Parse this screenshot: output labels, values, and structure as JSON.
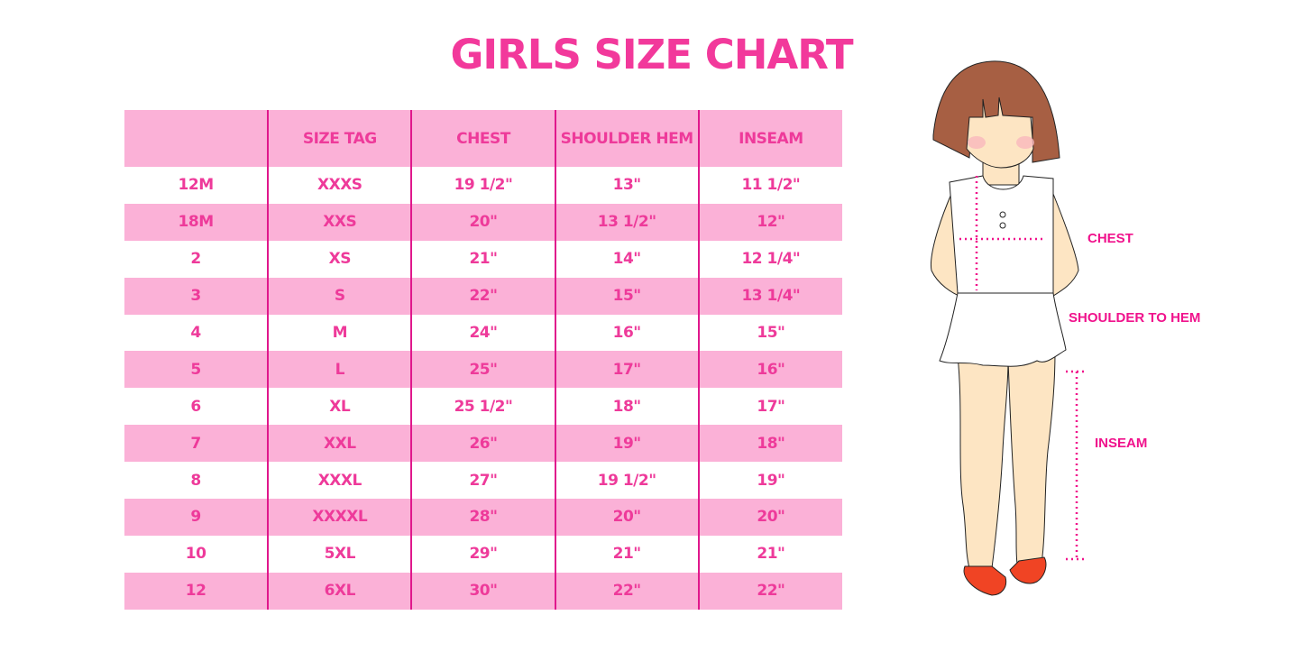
{
  "title": "GIRLS SIZE CHART",
  "table": {
    "headers": [
      "",
      "SIZE TAG",
      "CHEST",
      "SHOULDER HEM",
      "INSEAM"
    ],
    "rows": [
      [
        "12M",
        "XXXS",
        "19 1/2\"",
        "13\"",
        "11 1/2\""
      ],
      [
        "18M",
        "XXS",
        "20\"",
        "13 1/2\"",
        "12\""
      ],
      [
        "2",
        "XS",
        "21\"",
        "14\"",
        "12 1/4\""
      ],
      [
        "3",
        "S",
        "22\"",
        "15\"",
        "13 1/4\""
      ],
      [
        "4",
        "M",
        "24\"",
        "16\"",
        "15\""
      ],
      [
        "5",
        "L",
        "25\"",
        "17\"",
        "16\""
      ],
      [
        "6",
        "XL",
        "25 1/2\"",
        "18\"",
        "17\""
      ],
      [
        "7",
        "XXL",
        "26\"",
        "19\"",
        "18\""
      ],
      [
        "8",
        "XXXL",
        "27\"",
        "19 1/2\"",
        "19\""
      ],
      [
        "9",
        "XXXXL",
        "28\"",
        "20\"",
        "20\""
      ],
      [
        "10",
        "5XL",
        "29\"",
        "21\"",
        "21\""
      ],
      [
        "12",
        "6XL",
        "30\"",
        "22\"",
        "22\""
      ]
    ]
  },
  "figure": {
    "labels": {
      "chest": "CHEST",
      "shoulder_to_hem": "SHOULDER TO HEM",
      "inseam": "INSEAM"
    }
  },
  "colors": {
    "accent": "#f2399b",
    "row_pink": "#fbb1d7",
    "divider": "#e0178c"
  }
}
